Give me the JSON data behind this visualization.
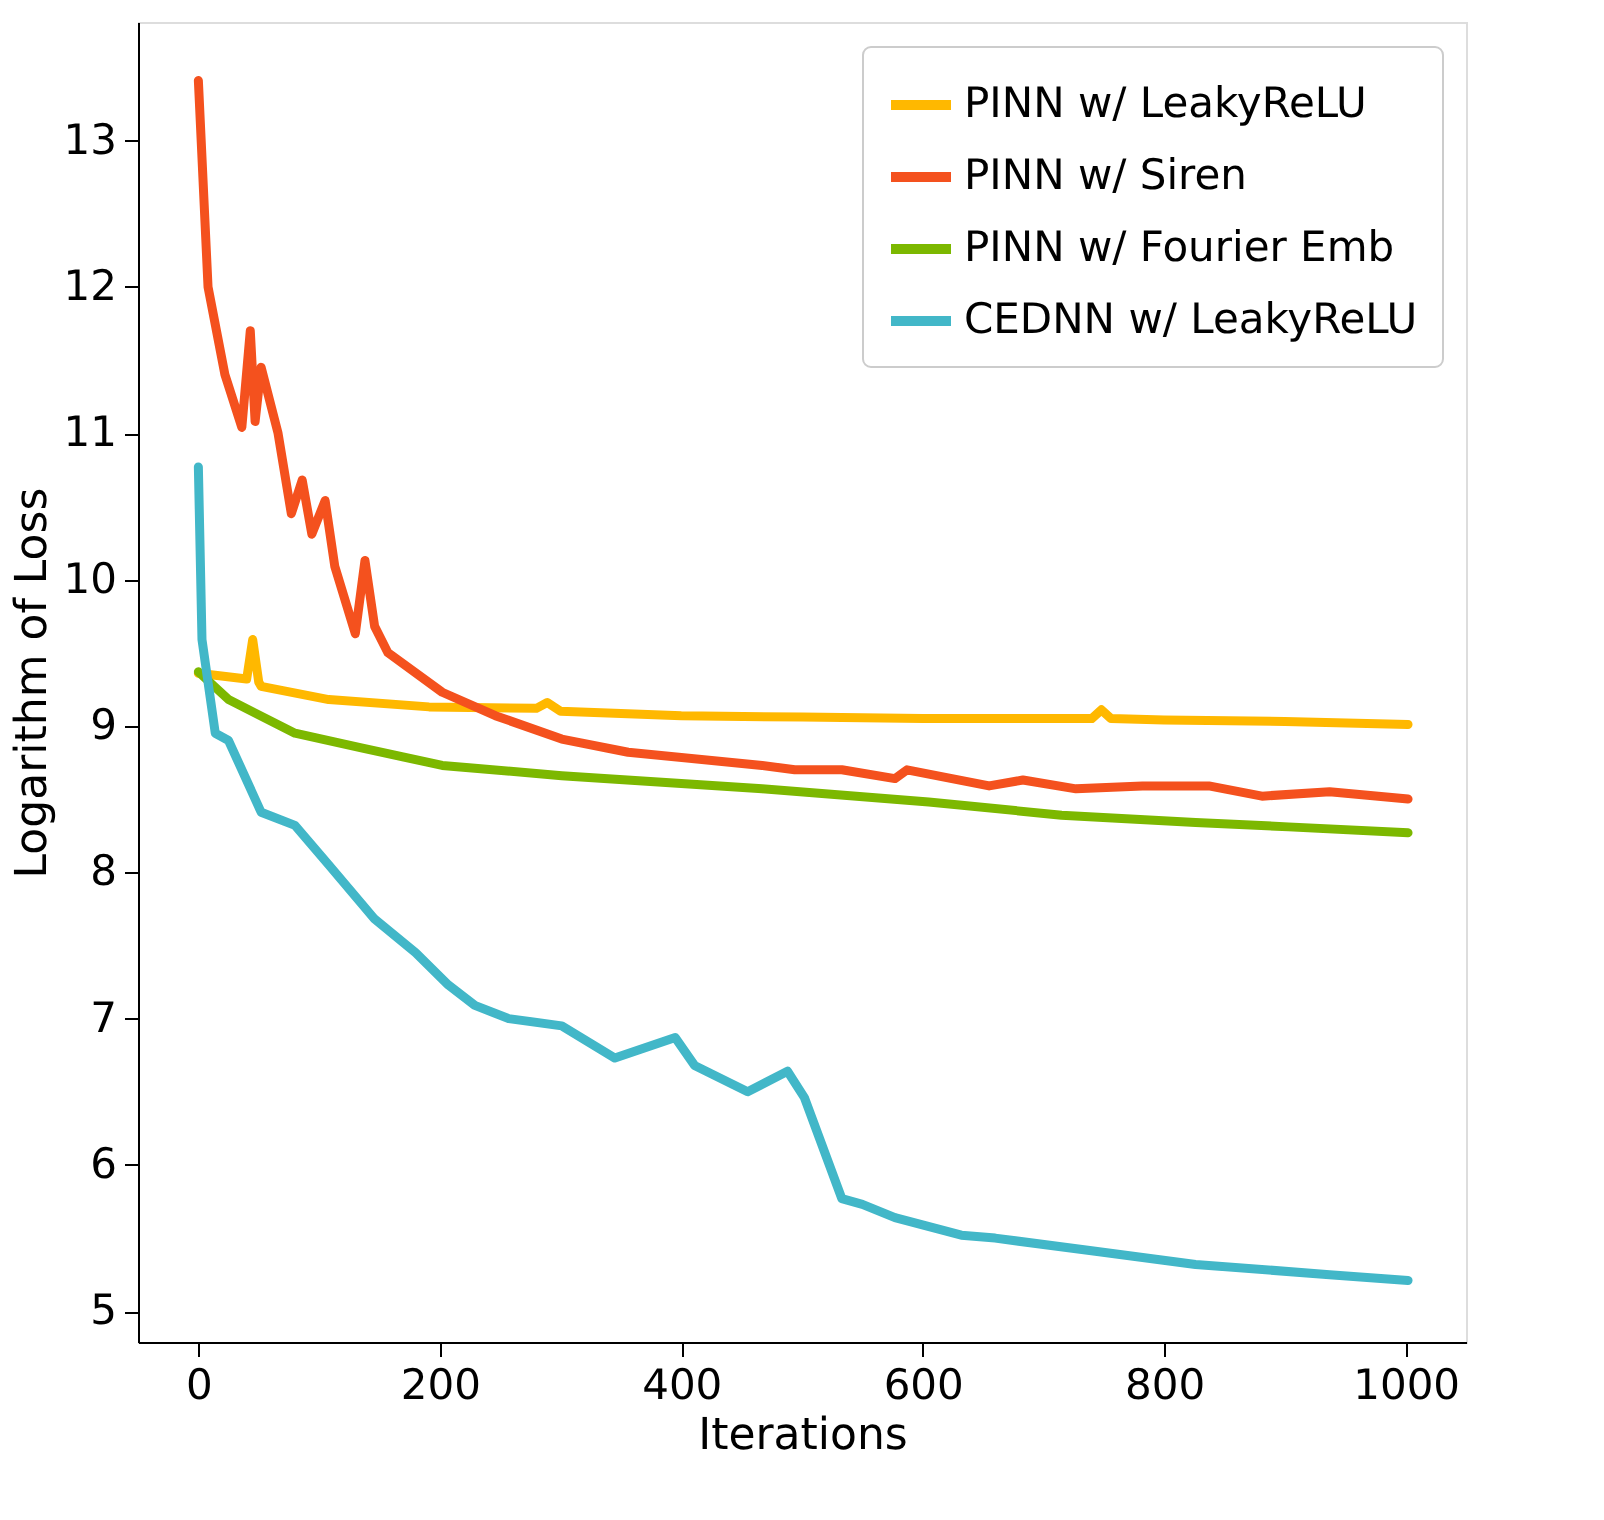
{
  "chart_data": {
    "type": "line",
    "xlabel": "Iterations",
    "ylabel": "Logarithm of Loss",
    "xlim": [
      -50,
      1050
    ],
    "ylim": [
      4.79,
      13.81
    ],
    "xticks": [
      0,
      200,
      400,
      600,
      800,
      1000
    ],
    "yticks": [
      5,
      6,
      7,
      8,
      9,
      10,
      11,
      12,
      13
    ],
    "grid": false,
    "legend": "top right",
    "line_style": "solid",
    "marker": "none",
    "series": [
      {
        "name": "PINN w/ LeakyReLU",
        "color": "#ffb800",
        "x": [
          0,
          40,
          45,
          50,
          52,
          108,
          191,
          280,
          289,
          300,
          400,
          500,
          600,
          700,
          740,
          748,
          756,
          800,
          900,
          1002
        ],
        "values": [
          9.36,
          9.32,
          9.59,
          9.3,
          9.27,
          9.18,
          9.13,
          9.12,
          9.16,
          9.1,
          9.07,
          9.06,
          9.05,
          9.05,
          9.05,
          9.11,
          9.05,
          9.04,
          9.03,
          9.01
        ]
      },
      {
        "name": "PINN w/ Siren",
        "color": "#f4511e",
        "x": [
          0,
          8,
          22,
          36,
          43,
          47,
          52,
          66,
          77,
          86,
          94,
          105,
          113,
          130,
          138,
          146,
          157,
          202,
          246,
          301,
          356,
          467,
          494,
          533,
          577,
          587,
          655,
          683,
          727,
          782,
          837,
          881,
          937,
          1002
        ],
        "values": [
          13.41,
          12.0,
          11.4,
          11.04,
          11.7,
          11.08,
          11.45,
          11.0,
          10.45,
          10.68,
          10.31,
          10.54,
          10.09,
          9.63,
          10.13,
          9.68,
          9.5,
          9.23,
          9.07,
          8.91,
          8.82,
          8.73,
          8.7,
          8.7,
          8.64,
          8.7,
          8.59,
          8.63,
          8.57,
          8.59,
          8.59,
          8.52,
          8.55,
          8.5
        ]
      },
      {
        "name": "PINN w/ Fourier Emb",
        "color": "#7cb800",
        "x": [
          0,
          25,
          80,
          135,
          202,
          301,
          467,
          605,
          715,
          826,
          903,
          1002
        ],
        "values": [
          9.37,
          9.18,
          8.95,
          8.85,
          8.73,
          8.66,
          8.57,
          8.48,
          8.39,
          8.34,
          8.31,
          8.27
        ]
      },
      {
        "name": "CEDNN w/ LeakyReLU",
        "color": "#42b7c8",
        "x": [
          0,
          3,
          14,
          25,
          52,
          80,
          108,
          146,
          180,
          207,
          229,
          257,
          301,
          345,
          395,
          411,
          455,
          488,
          502,
          533,
          550,
          577,
          632,
          660,
          743,
          826,
          937,
          1002
        ],
        "values": [
          10.77,
          9.59,
          8.95,
          8.9,
          8.41,
          8.32,
          8.05,
          7.68,
          7.45,
          7.23,
          7.09,
          7.0,
          6.95,
          6.73,
          6.87,
          6.68,
          6.5,
          6.64,
          6.46,
          5.77,
          5.73,
          5.64,
          5.52,
          5.5,
          5.41,
          5.32,
          5.25,
          5.21
        ]
      }
    ]
  }
}
